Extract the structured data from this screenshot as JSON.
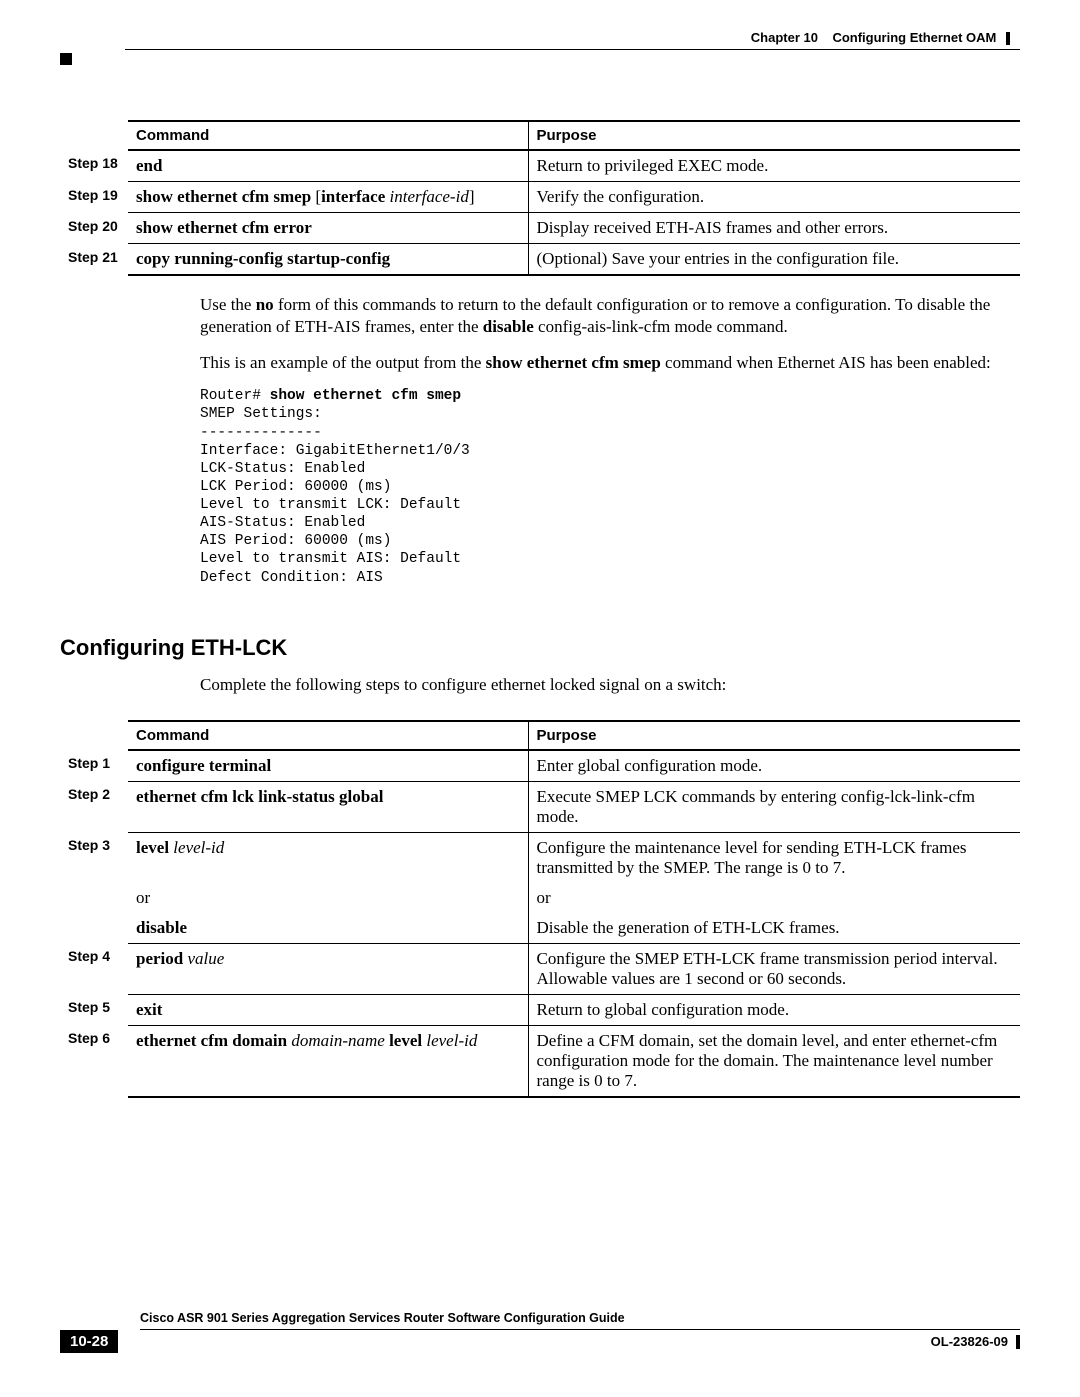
{
  "header": {
    "chapter": "Chapter 10",
    "title": "Configuring Ethernet OAM"
  },
  "table1": {
    "headers": {
      "command": "Command",
      "purpose": "Purpose"
    },
    "rows": [
      {
        "step": "Step 18",
        "cmd_parts": [
          {
            "text": "end",
            "bold": true
          }
        ],
        "purpose": "Return to privileged EXEC mode."
      },
      {
        "step": "Step 19",
        "cmd_parts": [
          {
            "text": "show ethernet cfm smep",
            "bold": true
          },
          {
            "text": " [",
            "bold": false
          },
          {
            "text": "interface",
            "bold": true
          },
          {
            "text": " ",
            "bold": false
          },
          {
            "text": "interface-id",
            "ital": true
          },
          {
            "text": "]",
            "bold": false
          }
        ],
        "purpose": "Verify the configuration."
      },
      {
        "step": "Step 20",
        "cmd_parts": [
          {
            "text": "show ethernet cfm error",
            "bold": true
          }
        ],
        "purpose": "Display received ETH-AIS frames and other errors."
      },
      {
        "step": "Step 21",
        "cmd_parts": [
          {
            "text": "copy running-config startup-config",
            "bold": true
          }
        ],
        "purpose": "(Optional) Save your entries in the configuration file."
      }
    ]
  },
  "para1_pre": "Use the ",
  "para1_b1": "no",
  "para1_mid": " form of this commands to return to the default configuration or to remove a configuration. To disable the generation of ETH-AIS frames, enter the ",
  "para1_b2": "disable",
  "para1_post": " config-ais-link-cfm mode command.",
  "para2_pre": "This is an example of the output from the ",
  "para2_b": "show ethernet cfm smep",
  "para2_post": " command when Ethernet AIS has been enabled:",
  "cli": {
    "prompt": "Router# ",
    "cmd": "show ethernet cfm smep",
    "output": "SMEP Settings:\n--------------\nInterface: GigabitEthernet1/0/3\nLCK-Status: Enabled\nLCK Period: 60000 (ms)\nLevel to transmit LCK: Default\nAIS-Status: Enabled\nAIS Period: 60000 (ms)\nLevel to transmit AIS: Default\nDefect Condition: AIS"
  },
  "section_heading": "Configuring ETH-LCK",
  "intro": "Complete the following steps to configure ethernet locked signal on a switch:",
  "table2": {
    "headers": {
      "command": "Command",
      "purpose": "Purpose"
    },
    "rows": [
      {
        "step": "Step 1",
        "cmd_parts": [
          {
            "text": "configure terminal",
            "bold": true
          }
        ],
        "purpose": "Enter global configuration mode."
      },
      {
        "step": "Step 2",
        "cmd_parts": [
          {
            "text": "ethernet cfm lck link-status global",
            "bold": true
          }
        ],
        "purpose": "Execute SMEP LCK commands by entering config-lck-link-cfm mode."
      },
      {
        "step": "Step 3",
        "cmd_parts": [
          {
            "text": "level",
            "bold": true
          },
          {
            "text": " ",
            "bold": false
          },
          {
            "text": "level-id",
            "ital": true
          }
        ],
        "purpose": "Configure the maintenance level for sending ETH-LCK frames transmitted by the SMEP. The range is 0 to 7.",
        "sub": [
          {
            "cmd_text": "or",
            "purpose": "or"
          },
          {
            "cmd_parts": [
              {
                "text": "disable",
                "bold": true
              }
            ],
            "purpose": "Disable the generation of ETH-LCK frames."
          }
        ]
      },
      {
        "step": "Step 4",
        "cmd_parts": [
          {
            "text": "period",
            "bold": true
          },
          {
            "text": " ",
            "bold": false
          },
          {
            "text": "value",
            "ital": true
          }
        ],
        "purpose": "Configure the SMEP ETH-LCK frame transmission period interval. Allowable values are 1 second or 60 seconds."
      },
      {
        "step": "Step 5",
        "cmd_parts": [
          {
            "text": "exit",
            "bold": true
          }
        ],
        "purpose": "Return to global configuration mode."
      },
      {
        "step": "Step 6",
        "cmd_parts": [
          {
            "text": "ethernet cfm domain",
            "bold": true
          },
          {
            "text": " ",
            "bold": false
          },
          {
            "text": "domain-name",
            "ital": true
          },
          {
            "text": " ",
            "bold": false
          },
          {
            "text": "level",
            "bold": true
          },
          {
            "text": " ",
            "bold": false
          },
          {
            "text": "level-id",
            "ital": true
          }
        ],
        "purpose": "Define a CFM domain, set the domain level, and enter ethernet-cfm configuration mode for the domain. The maintenance level number range is 0 to 7."
      }
    ]
  },
  "footer": {
    "title": "Cisco ASR 901 Series Aggregation Services Router Software Configuration Guide",
    "page": "10-28",
    "docnum": "OL-23826-09"
  }
}
